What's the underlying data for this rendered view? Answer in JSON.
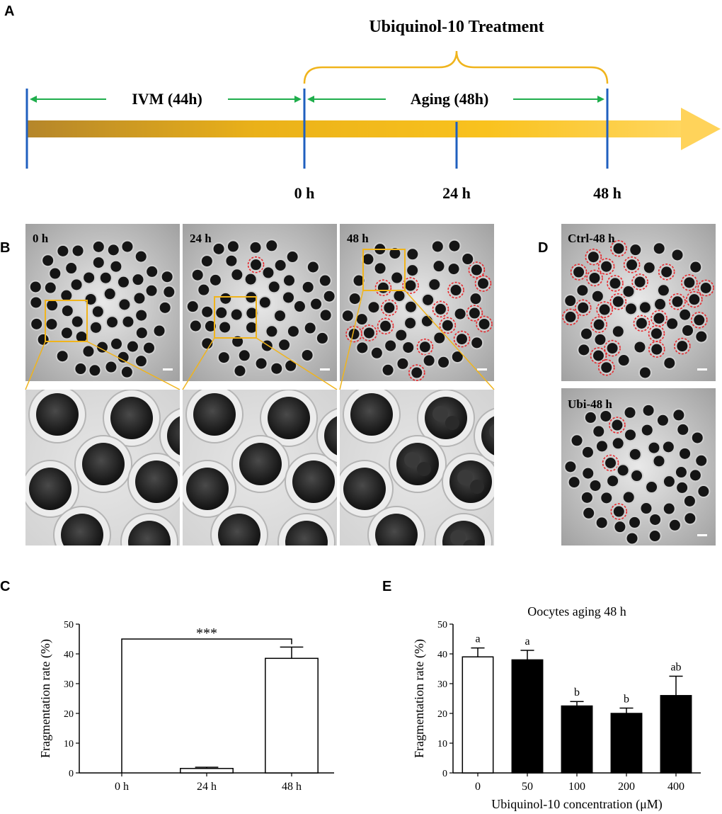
{
  "panel_a": {
    "letter": "A",
    "treatment_label": "Ubiquinol-10 Treatment",
    "ivm_label": "IVM (44h)",
    "aging_label": "Aging (48h)",
    "tick_labels": [
      "0 h",
      "24 h",
      "48 h"
    ]
  },
  "panel_b": {
    "letter": "B",
    "image_labels": [
      "0 h",
      "24 h",
      "48 h"
    ]
  },
  "panel_d": {
    "letter": "D",
    "image_labels": [
      "Ctrl-48 h",
      "Ubi-48 h"
    ]
  },
  "colors": {
    "arrow_dark": "#b78a1f",
    "arrow_mid": "#f2b81a",
    "arrow_light": "#ffd35a",
    "blue_tick": "#1f5fbf",
    "green_arrow": "#1fae4c",
    "brace": "#f0b41c",
    "zoom_box": "#f0b41c",
    "dashed_circle": "#e8282d"
  },
  "chart_data": [
    {
      "panel": "C",
      "type": "bar",
      "categories": [
        "0 h",
        "24 h",
        "48 h"
      ],
      "values": [
        0,
        1.5,
        38.5
      ],
      "errors": [
        0,
        0.4,
        3.8
      ],
      "ylabel": "Fragmentation rate (%)",
      "ylim": [
        0,
        50
      ],
      "yticks": [
        0,
        10,
        20,
        30,
        40,
        50
      ],
      "significance": "***",
      "bar_colors": [
        "#ffffff",
        "#ffffff",
        "#ffffff"
      ]
    },
    {
      "panel": "E",
      "type": "bar",
      "title": "Oocytes aging 48 h",
      "categories": [
        "0",
        "50",
        "100",
        "200",
        "400"
      ],
      "values": [
        39,
        38,
        22.5,
        20,
        26
      ],
      "errors": [
        3,
        3.2,
        1.5,
        1.8,
        6.5
      ],
      "letters": [
        "a",
        "a",
        "b",
        "b",
        "ab"
      ],
      "xlabel": "Ubiquinol-10 concentration (μM)",
      "ylabel": "Fragmentation rate (%)",
      "ylim": [
        0,
        50
      ],
      "yticks": [
        0,
        10,
        20,
        30,
        40,
        50
      ],
      "bar_colors": [
        "#ffffff",
        "#000000",
        "#000000",
        "#000000",
        "#000000"
      ]
    }
  ]
}
